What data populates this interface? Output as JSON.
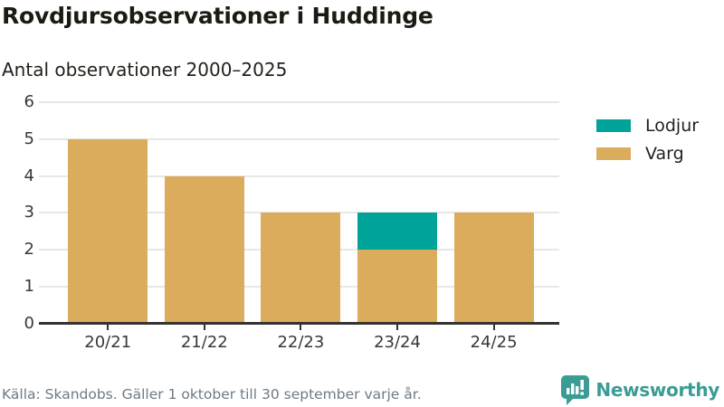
{
  "header": {
    "title": "Rovdjursobservationer i Huddinge",
    "subtitle": "Antal observationer 2000–2025"
  },
  "chart_data": {
    "type": "bar",
    "stacked": true,
    "title": "Rovdjursobservationer i Huddinge",
    "subtitle": "Antal observationer 2000–2025",
    "categories": [
      "20/21",
      "21/22",
      "22/23",
      "23/24",
      "24/25"
    ],
    "series": [
      {
        "name": "Varg",
        "color": "#daac5b",
        "values": [
          5,
          4,
          3,
          2,
          3
        ]
      },
      {
        "name": "Lodjur",
        "color": "#00a39a",
        "values": [
          0,
          0,
          0,
          1,
          0
        ]
      }
    ],
    "totals": [
      5,
      4,
      3,
      3,
      3
    ],
    "y_ticks": [
      0,
      1,
      2,
      3,
      4,
      5,
      6
    ],
    "ylim": [
      0,
      6
    ],
    "xlabel": "",
    "ylabel": "",
    "grid": true,
    "legend_position": "right",
    "legend": [
      {
        "label": "Lodjur",
        "color": "#00a39a"
      },
      {
        "label": "Varg",
        "color": "#daac5b"
      }
    ]
  },
  "footer": {
    "source": "Källa: Skandobs. Gäller 1 oktober till 30 september varje år.",
    "brand": "Newsworthy"
  },
  "colors": {
    "lodjur_teal": "#00a39a",
    "varg_tan": "#daac5b",
    "brand_teal": "#3a9c94",
    "grid": "#e7e7e7",
    "axis": "#333333",
    "title_text": "#1a1c13",
    "muted_text": "#6e7a85"
  }
}
